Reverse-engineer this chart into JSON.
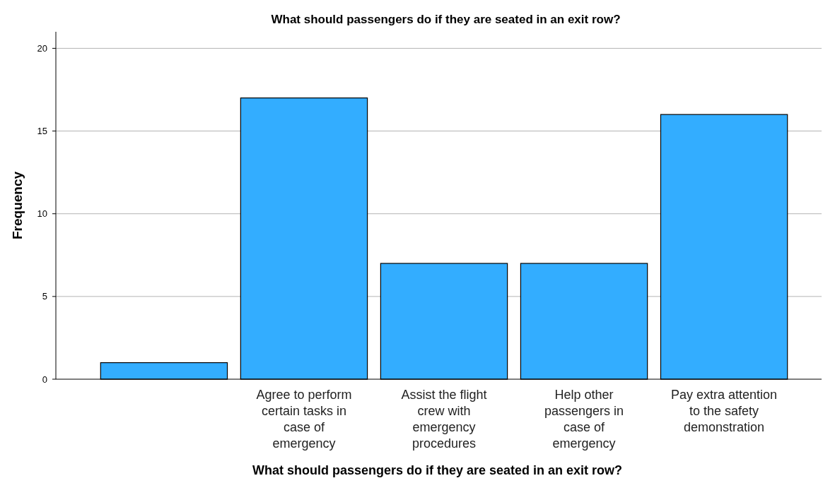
{
  "chart_data": {
    "type": "bar",
    "title": "What should passengers do if they are seated in an exit row?",
    "xlabel": "What should passengers do if they are seated in an exit row?",
    "ylabel": "Frequency",
    "categories": [
      null,
      "Agree to perform\ncertain tasks in\ncase of\nemergency",
      "Assist the flight\ncrew with\nemergency\nprocedures",
      "Help other\npassengers in\ncase of\nemergency",
      "Pay extra attention\nto the safety\ndemonstration"
    ],
    "values": [
      1,
      17,
      7,
      7,
      16
    ],
    "color": "#33adff",
    "ylim": [
      0,
      21
    ],
    "yticks": [
      0,
      5,
      10,
      15,
      20
    ],
    "grid": "y"
  }
}
